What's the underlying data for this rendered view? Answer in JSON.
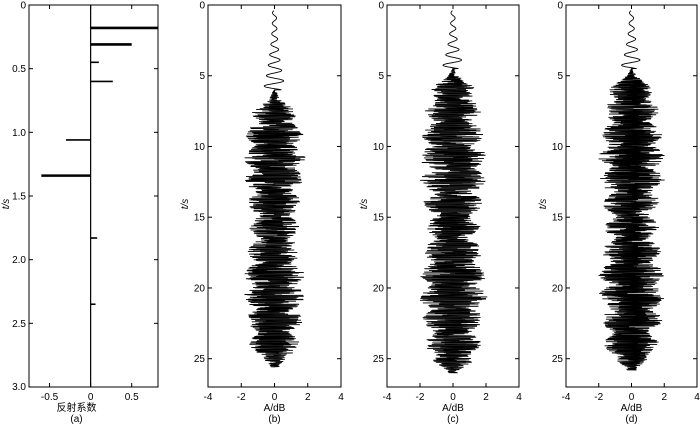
{
  "chart_data": [
    {
      "type": "bar",
      "orientation": "horizontal-spikes",
      "panel_label": "(a)",
      "xlabel": "反射系数",
      "ylabel": "t/s",
      "xlim": [
        -0.75,
        0.82
      ],
      "ylim": [
        0,
        3.0
      ],
      "x_ticks": [
        "-0.5",
        "0",
        "0.5"
      ],
      "y_ticks": [
        "0",
        "0.5",
        "1.0",
        "1.5",
        "2.0",
        "2.5",
        "3.0"
      ],
      "spikes": [
        {
          "t": 0.18,
          "value": 0.82
        },
        {
          "t": 0.31,
          "value": 0.5
        },
        {
          "t": 0.45,
          "value": 0.1
        },
        {
          "t": 0.6,
          "value": 0.27
        },
        {
          "t": 1.06,
          "value": -0.3
        },
        {
          "t": 1.34,
          "value": -0.6
        },
        {
          "t": 1.83,
          "value": 0.08
        },
        {
          "t": 2.35,
          "value": 0.06
        }
      ]
    },
    {
      "type": "line",
      "panel_label": "(b)",
      "xlabel": "A/dB",
      "ylabel": "t/s",
      "xlim": [
        -4,
        4
      ],
      "ylim": [
        0,
        27
      ],
      "x_ticks": [
        "-4",
        "-2",
        "0",
        "2",
        "4"
      ],
      "y_ticks": [
        "0",
        "5",
        "10",
        "15",
        "20",
        "25"
      ],
      "trace": {
        "start_t": 0.4,
        "end_t": 25.6,
        "onset_t": 6.0,
        "max_amplitude": 1.9
      }
    },
    {
      "type": "line",
      "panel_label": "(c)",
      "xlabel": "A/dB",
      "ylabel": "t/s",
      "xlim": [
        -4,
        4
      ],
      "ylim": [
        0,
        27
      ],
      "x_ticks": [
        "-4",
        "-2",
        "0",
        "2",
        "4"
      ],
      "y_ticks": [
        "0",
        "5",
        "10",
        "15",
        "20",
        "25"
      ],
      "trace": {
        "start_t": 0.4,
        "end_t": 26.0,
        "onset_t": 4.5,
        "max_amplitude": 2.1
      }
    },
    {
      "type": "line",
      "panel_label": "(d)",
      "xlabel": "A/dB",
      "ylabel": "t/s",
      "xlim": [
        -4,
        4
      ],
      "ylim": [
        0,
        27
      ],
      "x_ticks": [
        "-4",
        "-2",
        "0",
        "2",
        "4"
      ],
      "y_ticks": [
        "0",
        "5",
        "10",
        "15",
        "20",
        "25"
      ],
      "trace": {
        "start_t": 0.4,
        "end_t": 25.8,
        "onset_t": 4.5,
        "max_amplitude": 2.1
      }
    }
  ]
}
